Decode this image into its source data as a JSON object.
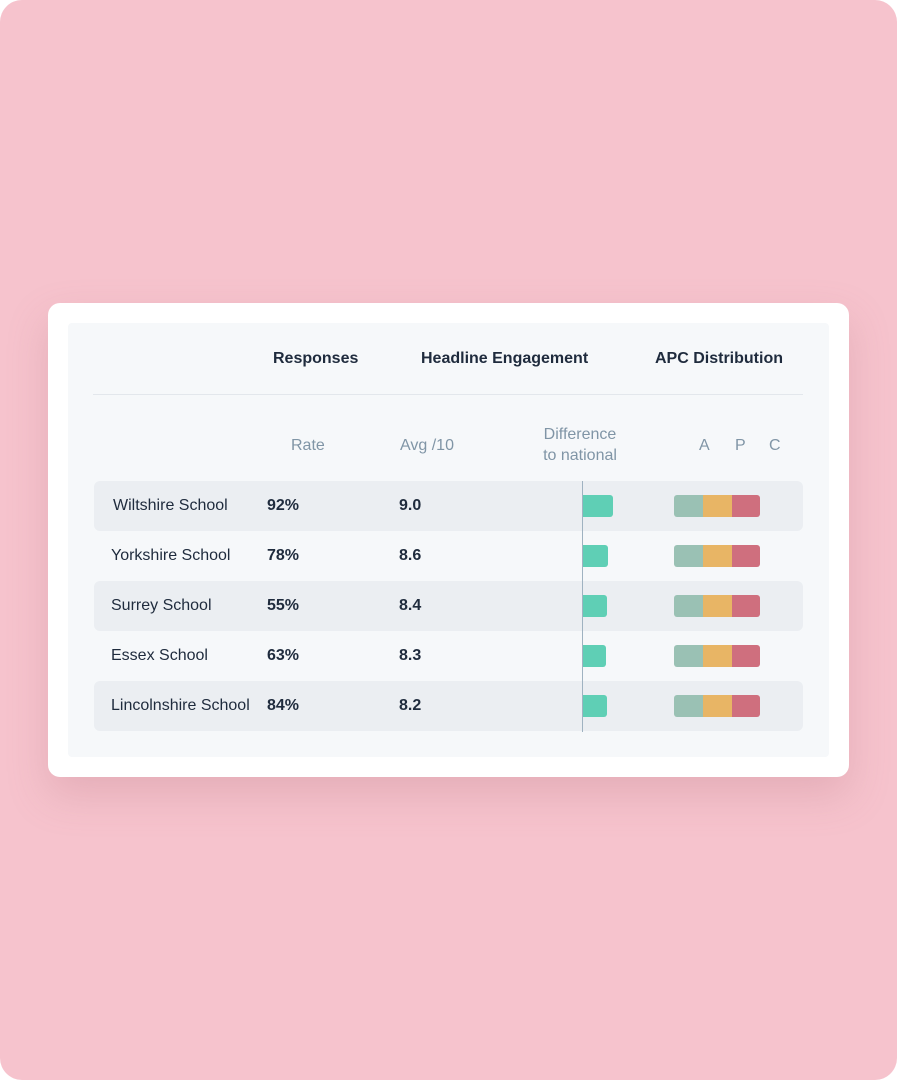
{
  "header": {
    "groups": {
      "responses": "Responses",
      "engagement": "Headline Engagement",
      "apc": "APC Distribution"
    },
    "sub": {
      "rate": "Rate",
      "avg": "Avg /10",
      "diff_line1": "Difference",
      "diff_line2": "to national",
      "a": "A",
      "p": "P",
      "c": "C"
    }
  },
  "colors": {
    "diff_positive": "#5fcfb5",
    "apc_a": "#9ac1b4",
    "apc_p": "#e8b565",
    "apc_c": "#cf6f7e"
  },
  "rows": [
    {
      "school": "Wiltshire School",
      "rate": "92%",
      "avg": "9.0",
      "diff": 0.3,
      "apc": [
        0.333,
        0.333,
        0.334
      ]
    },
    {
      "school": "Yorkshire School",
      "rate": "78%",
      "avg": "8.6",
      "diff": 0.25,
      "apc": [
        0.333,
        0.333,
        0.334
      ]
    },
    {
      "school": "Surrey School",
      "rate": "55%",
      "avg": "8.4",
      "diff": 0.24,
      "apc": [
        0.333,
        0.333,
        0.334
      ]
    },
    {
      "school": "Essex School",
      "rate": "63%",
      "avg": "8.3",
      "diff": 0.23,
      "apc": [
        0.333,
        0.333,
        0.334
      ]
    },
    {
      "school": "Lincolnshire School",
      "rate": "84%",
      "avg": "8.2",
      "diff": 0.24,
      "apc": [
        0.333,
        0.333,
        0.334
      ]
    }
  ]
}
